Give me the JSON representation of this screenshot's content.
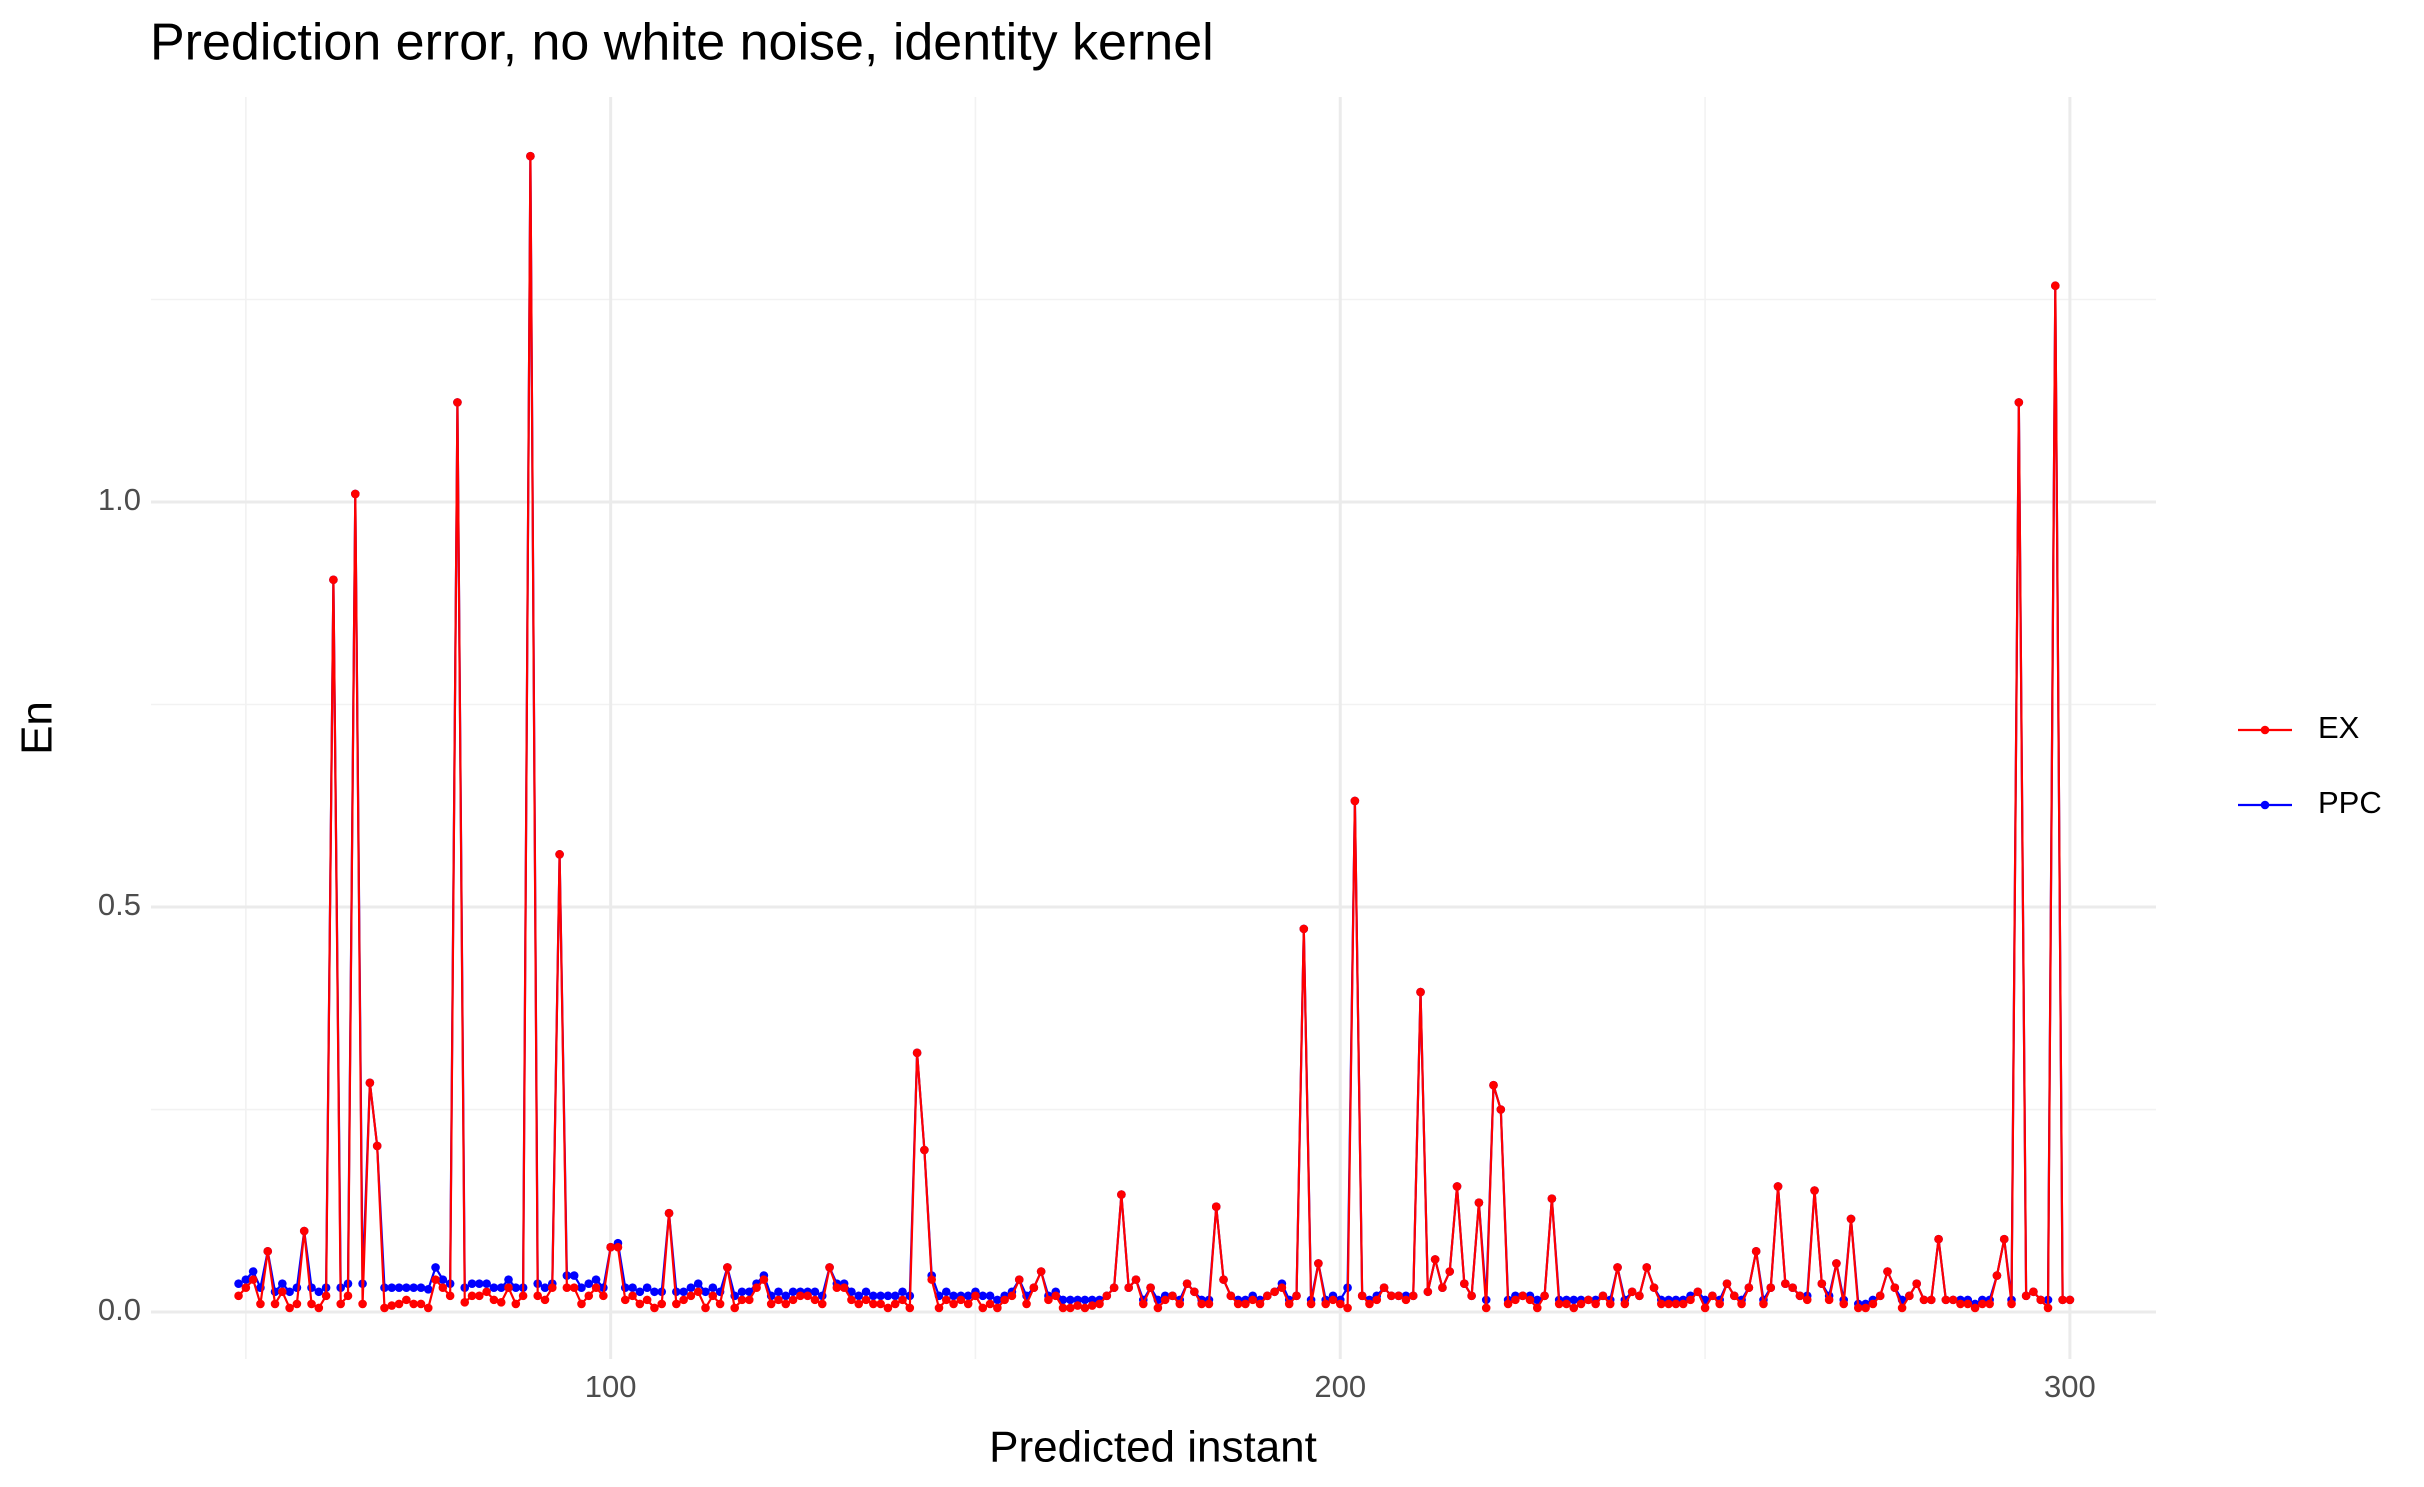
{
  "chart_data": {
    "type": "line",
    "title": "Prediction error, no white noise, identity kernel",
    "x_label": "Predicted instant",
    "y_label": "En",
    "xlim": [
      37.0,
      311.8
    ],
    "ylim": [
      -0.058,
      1.5
    ],
    "xticks": [
      100,
      200,
      300
    ],
    "xminorticks": [
      50,
      150,
      250
    ],
    "yticks": [
      {
        "value": 0,
        "label": "0.0"
      },
      0.5,
      {
        "value": 1,
        "label": "1.0"
      }
    ],
    "yminorticks": [
      0.25,
      0.75,
      1.25
    ],
    "grid": true,
    "legend": "right",
    "x": [
      49,
      50,
      51,
      52,
      53,
      54,
      55,
      56,
      57,
      58,
      59,
      60,
      61,
      62,
      63,
      64,
      65,
      66,
      67,
      68,
      69,
      70,
      71,
      72,
      73,
      74,
      75,
      76,
      77,
      78,
      79,
      80,
      81,
      82,
      83,
      84,
      85,
      86,
      87,
      88,
      89,
      90,
      91,
      92,
      93,
      94,
      95,
      96,
      97,
      98,
      99,
      100,
      101,
      102,
      103,
      104,
      105,
      106,
      107,
      108,
      109,
      110,
      111,
      112,
      113,
      114,
      115,
      116,
      117,
      118,
      119,
      120,
      121,
      122,
      123,
      124,
      125,
      126,
      127,
      128,
      129,
      130,
      131,
      132,
      133,
      134,
      135,
      136,
      137,
      138,
      139,
      140,
      141,
      142,
      143,
      144,
      145,
      146,
      147,
      148,
      149,
      150,
      151,
      152,
      153,
      154,
      155,
      156,
      157,
      158,
      159,
      160,
      161,
      162,
      163,
      164,
      165,
      166,
      167,
      168,
      169,
      170,
      171,
      172,
      173,
      174,
      175,
      176,
      177,
      178,
      179,
      180,
      181,
      182,
      183,
      184,
      185,
      186,
      187,
      188,
      189,
      190,
      191,
      192,
      193,
      194,
      195,
      196,
      197,
      198,
      199,
      200,
      201,
      202,
      203,
      204,
      205,
      206,
      207,
      208,
      209,
      210,
      211,
      212,
      213,
      214,
      215,
      216,
      217,
      218,
      219,
      220,
      221,
      222,
      223,
      224,
      225,
      226,
      227,
      228,
      229,
      230,
      231,
      232,
      233,
      234,
      235,
      236,
      237,
      238,
      239,
      240,
      241,
      242,
      243,
      244,
      245,
      246,
      247,
      248,
      249,
      250,
      251,
      252,
      253,
      254,
      255,
      256,
      257,
      258,
      259,
      260,
      261,
      262,
      263,
      264,
      265,
      266,
      267,
      268,
      269,
      270,
      271,
      272,
      273,
      274,
      275,
      276,
      277,
      278,
      279,
      280,
      281,
      282,
      283,
      284,
      285,
      286,
      287,
      288,
      289,
      290,
      291,
      292,
      293,
      294,
      295,
      296,
      297,
      298,
      299,
      300
    ],
    "series": [
      {
        "name": "EX",
        "color": "#ff0000",
        "values": [
          0.02,
          0.03,
          0.04,
          0.01,
          0.075,
          0.01,
          0.025,
          0.005,
          0.01,
          0.1,
          0.01,
          0.005,
          0.02,
          0.904,
          0.01,
          0.02,
          1.01,
          0.01,
          0.283,
          0.205,
          0.005,
          0.008,
          0.01,
          0.015,
          0.01,
          0.01,
          0.005,
          0.04,
          0.03,
          0.02,
          1.123,
          0.012,
          0.02,
          0.02,
          0.025,
          0.015,
          0.012,
          0.03,
          0.01,
          0.02,
          1.427,
          0.02,
          0.015,
          0.03,
          0.565,
          0.03,
          0.03,
          0.01,
          0.02,
          0.03,
          0.02,
          0.08,
          0.08,
          0.015,
          0.02,
          0.01,
          0.015,
          0.005,
          0.01,
          0.122,
          0.01,
          0.015,
          0.02,
          0.025,
          0.005,
          0.02,
          0.01,
          0.055,
          0.005,
          0.015,
          0.015,
          0.03,
          0.04,
          0.01,
          0.015,
          0.01,
          0.015,
          0.02,
          0.02,
          0.015,
          0.01,
          0.055,
          0.03,
          0.03,
          0.015,
          0.01,
          0.015,
          0.01,
          0.01,
          0.005,
          0.01,
          0.015,
          0.005,
          0.32,
          0.2,
          0.04,
          0.005,
          0.015,
          0.01,
          0.015,
          0.01,
          0.02,
          0.005,
          0.01,
          0.005,
          0.015,
          0.02,
          0.04,
          0.01,
          0.03,
          0.05,
          0.015,
          0.02,
          0.005,
          0.005,
          0.008,
          0.005,
          0.008,
          0.01,
          0.02,
          0.03,
          0.145,
          0.03,
          0.04,
          0.01,
          0.03,
          0.005,
          0.015,
          0.02,
          0.01,
          0.035,
          0.025,
          0.01,
          0.01,
          0.13,
          0.04,
          0.02,
          0.01,
          0.01,
          0.015,
          0.01,
          0.02,
          0.025,
          0.03,
          0.01,
          0.02,
          0.473,
          0.01,
          0.06,
          0.01,
          0.015,
          0.01,
          0.005,
          0.631,
          0.02,
          0.01,
          0.015,
          0.03,
          0.02,
          0.02,
          0.015,
          0.02,
          0.395,
          0.025,
          0.065,
          0.03,
          0.05,
          0.155,
          0.035,
          0.02,
          0.135,
          0.005,
          0.28,
          0.25,
          0.01,
          0.015,
          0.02,
          0.015,
          0.005,
          0.02,
          0.14,
          0.01,
          0.01,
          0.005,
          0.01,
          0.015,
          0.01,
          0.02,
          0.01,
          0.055,
          0.01,
          0.025,
          0.02,
          0.055,
          0.03,
          0.01,
          0.01,
          0.01,
          0.01,
          0.015,
          0.025,
          0.005,
          0.02,
          0.01,
          0.035,
          0.02,
          0.01,
          0.03,
          0.075,
          0.01,
          0.03,
          0.155,
          0.035,
          0.03,
          0.02,
          0.015,
          0.15,
          0.035,
          0.015,
          0.06,
          0.01,
          0.115,
          0.005,
          0.005,
          0.01,
          0.02,
          0.05,
          0.03,
          0.005,
          0.02,
          0.035,
          0.015,
          0.015,
          0.09,
          0.015,
          0.015,
          0.01,
          0.01,
          0.005,
          0.01,
          0.01,
          0.045,
          0.09,
          0.01,
          1.123,
          0.02,
          0.025,
          0.015,
          0.005,
          1.267,
          0.015,
          0.015
        ]
      },
      {
        "name": "PPC",
        "color": "#0000ff",
        "values": [
          0.035,
          0.04,
          0.05,
          0.03,
          0.075,
          0.025,
          0.035,
          0.025,
          0.03,
          0.1,
          0.03,
          0.025,
          0.03,
          0.904,
          0.03,
          0.035,
          1.01,
          0.035,
          0.283,
          0.205,
          0.03,
          0.03,
          0.03,
          0.03,
          0.03,
          0.03,
          0.028,
          0.055,
          0.04,
          0.035,
          1.123,
          0.03,
          0.035,
          0.035,
          0.035,
          0.03,
          0.03,
          0.04,
          0.03,
          0.03,
          1.427,
          0.035,
          0.03,
          0.035,
          0.565,
          0.045,
          0.045,
          0.03,
          0.035,
          0.04,
          0.03,
          0.08,
          0.085,
          0.03,
          0.03,
          0.025,
          0.03,
          0.025,
          0.025,
          0.122,
          0.025,
          0.025,
          0.03,
          0.035,
          0.025,
          0.03,
          0.025,
          0.055,
          0.02,
          0.025,
          0.025,
          0.035,
          0.045,
          0.02,
          0.025,
          0.02,
          0.025,
          0.025,
          0.025,
          0.025,
          0.02,
          0.055,
          0.035,
          0.035,
          0.025,
          0.02,
          0.025,
          0.02,
          0.02,
          0.02,
          0.02,
          0.025,
          0.02,
          0.32,
          0.2,
          0.045,
          0.02,
          0.025,
          0.02,
          0.02,
          0.02,
          0.025,
          0.02,
          0.02,
          0.015,
          0.02,
          0.025,
          0.04,
          0.02,
          0.03,
          0.05,
          0.02,
          0.025,
          0.015,
          0.015,
          0.015,
          0.015,
          0.015,
          0.015,
          0.02,
          0.03,
          0.145,
          0.03,
          0.04,
          0.015,
          0.03,
          0.015,
          0.02,
          0.02,
          0.015,
          0.035,
          0.025,
          0.015,
          0.015,
          0.13,
          0.04,
          0.02,
          0.015,
          0.015,
          0.02,
          0.015,
          0.02,
          0.025,
          0.035,
          0.015,
          0.02,
          0.473,
          0.015,
          0.06,
          0.015,
          0.02,
          0.015,
          0.03,
          0.631,
          0.02,
          0.015,
          0.02,
          0.03,
          0.02,
          0.02,
          0.02,
          0.02,
          0.395,
          0.025,
          0.065,
          0.03,
          0.05,
          0.155,
          0.035,
          0.02,
          0.135,
          0.015,
          0.28,
          0.25,
          0.015,
          0.02,
          0.02,
          0.02,
          0.015,
          0.02,
          0.14,
          0.015,
          0.015,
          0.015,
          0.015,
          0.015,
          0.015,
          0.02,
          0.015,
          0.055,
          0.015,
          0.025,
          0.02,
          0.055,
          0.03,
          0.015,
          0.015,
          0.015,
          0.015,
          0.02,
          0.025,
          0.015,
          0.02,
          0.015,
          0.035,
          0.02,
          0.015,
          0.03,
          0.075,
          0.015,
          0.03,
          0.155,
          0.035,
          0.03,
          0.02,
          0.02,
          0.15,
          0.035,
          0.02,
          0.06,
          0.015,
          0.115,
          0.01,
          0.01,
          0.015,
          0.02,
          0.05,
          0.03,
          0.015,
          0.02,
          0.035,
          0.015,
          0.015,
          0.09,
          0.015,
          0.015,
          0.015,
          0.015,
          0.01,
          0.015,
          0.015,
          0.045,
          0.09,
          0.015,
          1.123,
          0.02,
          0.025,
          0.015,
          0.015,
          1.267,
          0.015,
          0.015
        ]
      }
    ]
  }
}
